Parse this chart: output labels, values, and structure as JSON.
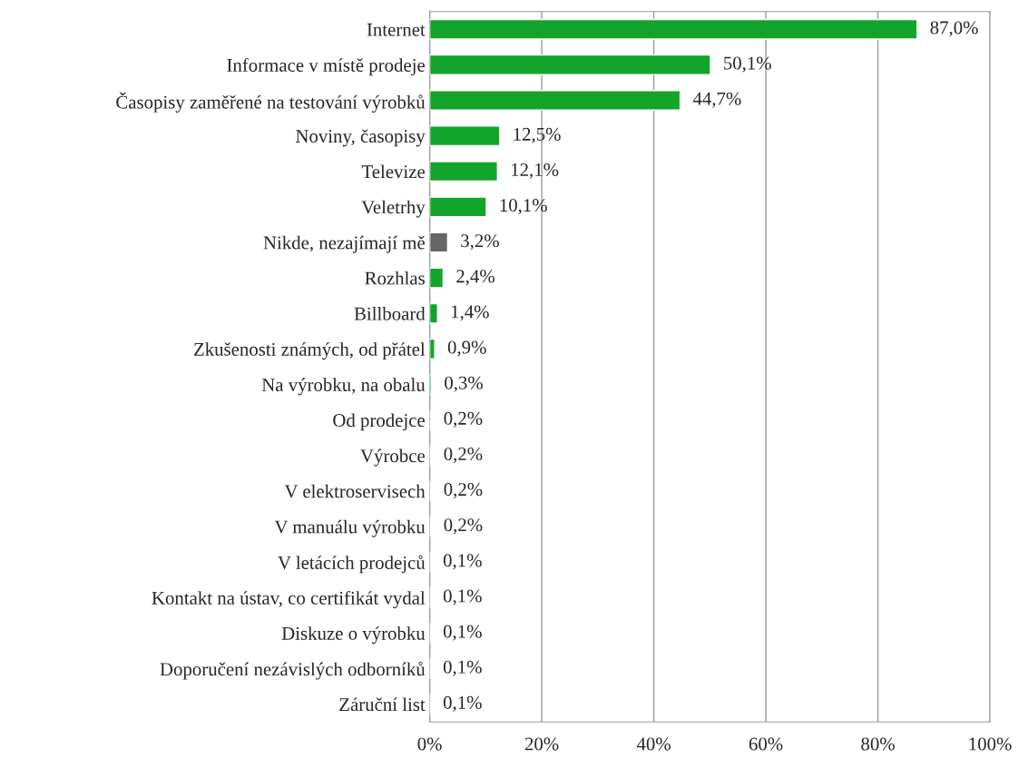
{
  "chart_data": {
    "type": "bar",
    "orientation": "horizontal",
    "categories": [
      "Internet",
      "Informace v místě prodeje",
      "Časopisy zaměřené na testování výrobků",
      "Noviny, časopisy",
      "Televize",
      "Veletrhy",
      "Nikde, nezajímají mě",
      "Rozhlas",
      "Billboard",
      "Zkušenosti známých, od přátel",
      "Na výrobku, na obalu",
      "Od prodejce",
      "Výrobce",
      "V elektroservisech",
      "V manuálu výrobku",
      "V letácích prodejců",
      "Kontakt na ústav, co certifikát vydal",
      "Diskuze o výrobku",
      "Doporučení nezávislých odborníků",
      "Záruční list"
    ],
    "values": [
      87.0,
      50.1,
      44.7,
      12.5,
      12.1,
      10.1,
      3.2,
      2.4,
      1.4,
      0.9,
      0.3,
      0.2,
      0.2,
      0.2,
      0.2,
      0.1,
      0.1,
      0.1,
      0.1,
      0.1
    ],
    "value_labels": [
      "87,0%",
      "50,1%",
      "44,7%",
      "12,5%",
      "12,1%",
      "10,1%",
      "3,2%",
      "2,4%",
      "1,4%",
      "0,9%",
      "0,3%",
      "0,2%",
      "0,2%",
      "0,2%",
      "0,2%",
      "0,1%",
      "0,1%",
      "0,1%",
      "0,1%",
      "0,1%"
    ],
    "colors": [
      "#13a52b",
      "#13a52b",
      "#13a52b",
      "#13a52b",
      "#13a52b",
      "#13a52b",
      "#666666",
      "#13a52b",
      "#13a52b",
      "#13a52b",
      "#13a52b",
      "#13a52b",
      "#13a52b",
      "#13a52b",
      "#13a52b",
      "#13a52b",
      "#13a52b",
      "#13a52b",
      "#13a52b",
      "#13a52b"
    ],
    "xlim": [
      0,
      100
    ],
    "xticks": [
      {
        "value": 0,
        "label": "0%"
      },
      {
        "value": 20,
        "label": "20%"
      },
      {
        "value": 40,
        "label": "40%"
      },
      {
        "value": 60,
        "label": "60%"
      },
      {
        "value": 80,
        "label": "80%"
      },
      {
        "value": 100,
        "label": "100%"
      }
    ],
    "grid": "x",
    "legend": false
  }
}
